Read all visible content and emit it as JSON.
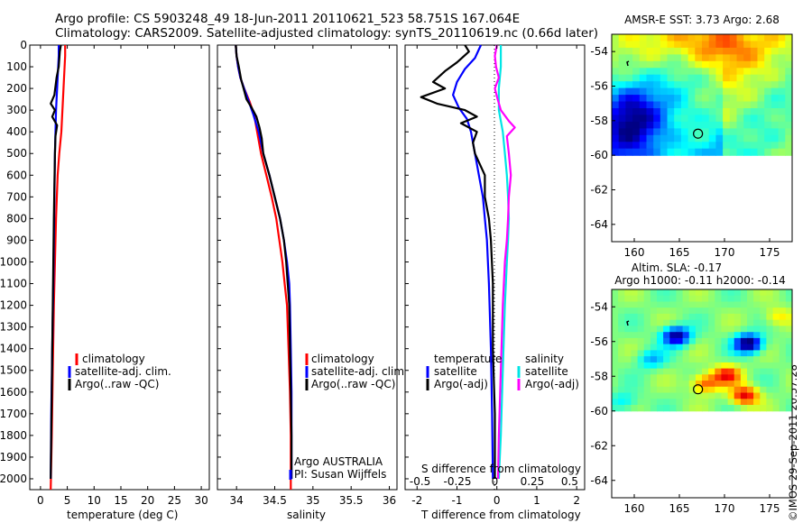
{
  "header": {
    "line1": "Argo profile: CS 5903248_49 18-Jun-2011 20110621_523 58.751S 167.064E",
    "line2": "Climatology: CARS2009. Satellite-adjusted climatology: synTS_20110619.nc (0.66d later)"
  },
  "side_label": "©IMOS 29-Sep-2011 20:57:28",
  "colors": {
    "climatology": "#ff0000",
    "satellite": "#0000ff",
    "argo": "#000000",
    "sal_satellite": "#00e5e5",
    "sal_argo": "#ff00ff"
  },
  "chart_data": [
    {
      "type": "line",
      "xlabel": "temperature (deg C)",
      "xlim": [
        -2,
        31.5
      ],
      "ylim": [
        0,
        2050
      ],
      "xticks": [
        0,
        5,
        10,
        15,
        20,
        25,
        30
      ],
      "yticks": [
        0,
        100,
        200,
        300,
        400,
        500,
        600,
        700,
        800,
        900,
        1000,
        1100,
        1200,
        1300,
        1400,
        1500,
        1600,
        1700,
        1800,
        1900,
        2000
      ],
      "legend": [
        "climatology",
        "satellite-adj. clim.",
        "Argo(..raw -QC)"
      ],
      "series": [
        {
          "name": "climatology",
          "color": "#ff0000",
          "points": [
            [
              4.6,
              0
            ],
            [
              4.6,
              50
            ],
            [
              4.5,
              100
            ],
            [
              4.3,
              200
            ],
            [
              4.1,
              300
            ],
            [
              3.9,
              400
            ],
            [
              3.5,
              500
            ],
            [
              3.2,
              600
            ],
            [
              2.9,
              800
            ],
            [
              2.7,
              1000
            ],
            [
              2.5,
              1200
            ],
            [
              2.3,
              1500
            ],
            [
              2.1,
              1800
            ],
            [
              1.9,
              2050
            ]
          ]
        },
        {
          "name": "satellite-adj. clim.",
          "color": "#0000ff",
          "points": [
            [
              3.4,
              0
            ],
            [
              3.4,
              50
            ],
            [
              3.3,
              100
            ],
            [
              3.1,
              200
            ],
            [
              2.9,
              300
            ],
            [
              2.8,
              400
            ],
            [
              2.7,
              500
            ],
            [
              2.6,
              700
            ],
            [
              2.5,
              900
            ],
            [
              2.4,
              1100
            ],
            [
              2.2,
              1400
            ],
            [
              2.0,
              1700
            ],
            [
              1.9,
              2000
            ]
          ]
        },
        {
          "name": "Argo(..raw -QC)",
          "color": "#000000",
          "points": [
            [
              3.8,
              0
            ],
            [
              3.6,
              30
            ],
            [
              3.4,
              100
            ],
            [
              3.0,
              150
            ],
            [
              2.6,
              230
            ],
            [
              1.9,
              270
            ],
            [
              2.7,
              300
            ],
            [
              2.2,
              330
            ],
            [
              3.1,
              370
            ],
            [
              2.8,
              420
            ],
            [
              2.7,
              500
            ],
            [
              2.6,
              650
            ],
            [
              2.5,
              800
            ],
            [
              2.4,
              1000
            ],
            [
              2.3,
              1200
            ],
            [
              2.2,
              1400
            ],
            [
              2.1,
              1600
            ],
            [
              2.0,
              1800
            ],
            [
              1.9,
              2000
            ]
          ]
        }
      ]
    },
    {
      "type": "line",
      "xlabel": "salinity",
      "xlim": [
        33.75,
        36.1
      ],
      "ylim": [
        0,
        2050
      ],
      "xticks": [
        34,
        34.5,
        35,
        35.5,
        36
      ],
      "legend": [
        "climatology",
        "satellite-adj. clim.",
        "Argo(..raw -QC)"
      ],
      "annotation": [
        "Argo AUSTRALIA",
        "PI: Susan Wijffels"
      ],
      "series": [
        {
          "name": "climatology",
          "color": "#ff0000",
          "points": [
            [
              33.99,
              0
            ],
            [
              34.0,
              50
            ],
            [
              34.02,
              100
            ],
            [
              34.05,
              150
            ],
            [
              34.1,
              200
            ],
            [
              34.17,
              260
            ],
            [
              34.23,
              320
            ],
            [
              34.27,
              400
            ],
            [
              34.32,
              500
            ],
            [
              34.39,
              600
            ],
            [
              34.46,
              700
            ],
            [
              34.52,
              800
            ],
            [
              34.56,
              900
            ],
            [
              34.6,
              1000
            ],
            [
              34.63,
              1100
            ],
            [
              34.66,
              1200
            ],
            [
              34.68,
              1400
            ],
            [
              34.7,
              1600
            ],
            [
              34.71,
              1800
            ],
            [
              34.71,
              2050
            ]
          ]
        },
        {
          "name": "satellite-adj. clim.",
          "color": "#0000ff",
          "points": [
            [
              33.99,
              0
            ],
            [
              34.0,
              50
            ],
            [
              34.02,
              100
            ],
            [
              34.05,
              150
            ],
            [
              34.1,
              200
            ],
            [
              34.16,
              260
            ],
            [
              34.22,
              320
            ],
            [
              34.29,
              400
            ],
            [
              34.35,
              500
            ],
            [
              34.43,
              600
            ],
            [
              34.5,
              700
            ],
            [
              34.57,
              800
            ],
            [
              34.62,
              900
            ],
            [
              34.66,
              1000
            ],
            [
              34.69,
              1100
            ],
            [
              34.7,
              1200
            ],
            [
              34.71,
              1400
            ],
            [
              34.72,
              1600
            ],
            [
              34.72,
              1800
            ],
            [
              34.72,
              2000
            ]
          ]
        },
        {
          "name": "Argo(..raw -QC)",
          "color": "#000000",
          "points": [
            [
              33.99,
              0
            ],
            [
              34.0,
              50
            ],
            [
              34.03,
              100
            ],
            [
              34.06,
              160
            ],
            [
              34.1,
              210
            ],
            [
              34.13,
              250
            ],
            [
              34.2,
              290
            ],
            [
              34.26,
              330
            ],
            [
              34.3,
              380
            ],
            [
              34.33,
              430
            ],
            [
              34.35,
              500
            ],
            [
              34.43,
              600
            ],
            [
              34.5,
              700
            ],
            [
              34.57,
              800
            ],
            [
              34.62,
              900
            ],
            [
              34.65,
              1000
            ],
            [
              34.67,
              1100
            ],
            [
              34.69,
              1200
            ],
            [
              34.7,
              1400
            ],
            [
              34.71,
              1600
            ],
            [
              34.72,
              1800
            ],
            [
              34.72,
              2000
            ]
          ]
        }
      ]
    },
    {
      "type": "line",
      "xlabel": "T difference from climatology",
      "toplabel": "S difference from climatology",
      "xlim": [
        -2.3,
        2.2
      ],
      "ylim": [
        0,
        2050
      ],
      "xticks": [
        -2,
        -1,
        0,
        1,
        2
      ],
      "top_ticks": [
        "-0.5",
        "-0.25",
        "0",
        "0.25",
        "0.5"
      ],
      "legend_temperature": [
        "temperature",
        "satellite",
        "Argo(-adj)"
      ],
      "legend_salinity": [
        "salinity",
        "satellite",
        "Argo(-adj)"
      ],
      "series": [
        {
          "name": "temperature satellite",
          "color": "#0000ff",
          "points": [
            [
              -0.4,
              0
            ],
            [
              -0.55,
              60
            ],
            [
              -0.8,
              110
            ],
            [
              -1.0,
              170
            ],
            [
              -1.1,
              230
            ],
            [
              -0.95,
              290
            ],
            [
              -0.75,
              340
            ],
            [
              -0.65,
              400
            ],
            [
              -0.55,
              500
            ],
            [
              -0.45,
              600
            ],
            [
              -0.35,
              700
            ],
            [
              -0.3,
              800
            ],
            [
              -0.25,
              900
            ],
            [
              -0.2,
              1100
            ],
            [
              -0.15,
              1400
            ],
            [
              -0.12,
              1700
            ],
            [
              -0.1,
              2000
            ]
          ]
        },
        {
          "name": "temperature Argo(-adj)",
          "color": "#000000",
          "points": [
            [
              -0.8,
              0
            ],
            [
              -0.7,
              30
            ],
            [
              -1.0,
              80
            ],
            [
              -1.3,
              120
            ],
            [
              -1.6,
              170
            ],
            [
              -1.3,
              200
            ],
            [
              -1.9,
              240
            ],
            [
              -1.5,
              270
            ],
            [
              -0.8,
              300
            ],
            [
              -0.5,
              330
            ],
            [
              -0.9,
              360
            ],
            [
              -0.5,
              400
            ],
            [
              -0.6,
              450
            ],
            [
              -0.55,
              500
            ],
            [
              -0.3,
              600
            ],
            [
              -0.3,
              700
            ],
            [
              -0.2,
              800
            ],
            [
              -0.15,
              900
            ],
            [
              -0.1,
              1100
            ],
            [
              -0.1,
              1400
            ],
            [
              -0.05,
              1700
            ],
            [
              -0.05,
              2000
            ]
          ]
        },
        {
          "name": "salinity satellite",
          "color": "#00e5e5",
          "points": [
            [
              0.1,
              0
            ],
            [
              0.1,
              100
            ],
            [
              0.05,
              200
            ],
            [
              0.05,
              300
            ],
            [
              0.15,
              400
            ],
            [
              0.2,
              500
            ],
            [
              0.25,
              600
            ],
            [
              0.28,
              700
            ],
            [
              0.3,
              800
            ],
            [
              0.28,
              900
            ],
            [
              0.25,
              1000
            ],
            [
              0.2,
              1200
            ],
            [
              0.15,
              1500
            ],
            [
              0.1,
              1800
            ],
            [
              0.05,
              2000
            ]
          ]
        },
        {
          "name": "salinity Argo(-adj)",
          "color": "#ff00ff",
          "points": [
            [
              0.0,
              0
            ],
            [
              -0.05,
              50
            ],
            [
              -0.02,
              100
            ],
            [
              0.05,
              150
            ],
            [
              -0.05,
              200
            ],
            [
              0.02,
              250
            ],
            [
              0.1,
              300
            ],
            [
              0.3,
              350
            ],
            [
              0.45,
              380
            ],
            [
              0.25,
              420
            ],
            [
              0.3,
              500
            ],
            [
              0.35,
              600
            ],
            [
              0.3,
              700
            ],
            [
              0.28,
              800
            ],
            [
              0.25,
              900
            ],
            [
              0.2,
              1000
            ],
            [
              0.15,
              1200
            ],
            [
              0.1,
              1500
            ],
            [
              0.05,
              1800
            ],
            [
              0.03,
              2000
            ]
          ]
        }
      ]
    },
    {
      "type": "heatmap",
      "title": "AMSR-E SST: 3.73 Argo: 2.68",
      "xlim": [
        157.5,
        177.5
      ],
      "ylim": [
        -65,
        -53
      ],
      "xticks": [
        160,
        165,
        170,
        175
      ],
      "yticks": [
        -54,
        -56,
        -58,
        -60,
        -62,
        -64
      ],
      "coverage_lat_min": -60,
      "argo_position": [
        167.064,
        -58.751
      ]
    },
    {
      "type": "heatmap",
      "title": "Altim. SLA: -0.17",
      "subtitle": "Argo h1000: -0.11 h2000: -0.14",
      "xlim": [
        157.5,
        177.5
      ],
      "ylim": [
        -65,
        -53
      ],
      "xticks": [
        160,
        165,
        170,
        175
      ],
      "yticks": [
        -54,
        -56,
        -58,
        -60,
        -62,
        -64
      ],
      "coverage_lat_min": -60,
      "argo_position": [
        167.064,
        -58.751
      ]
    }
  ]
}
